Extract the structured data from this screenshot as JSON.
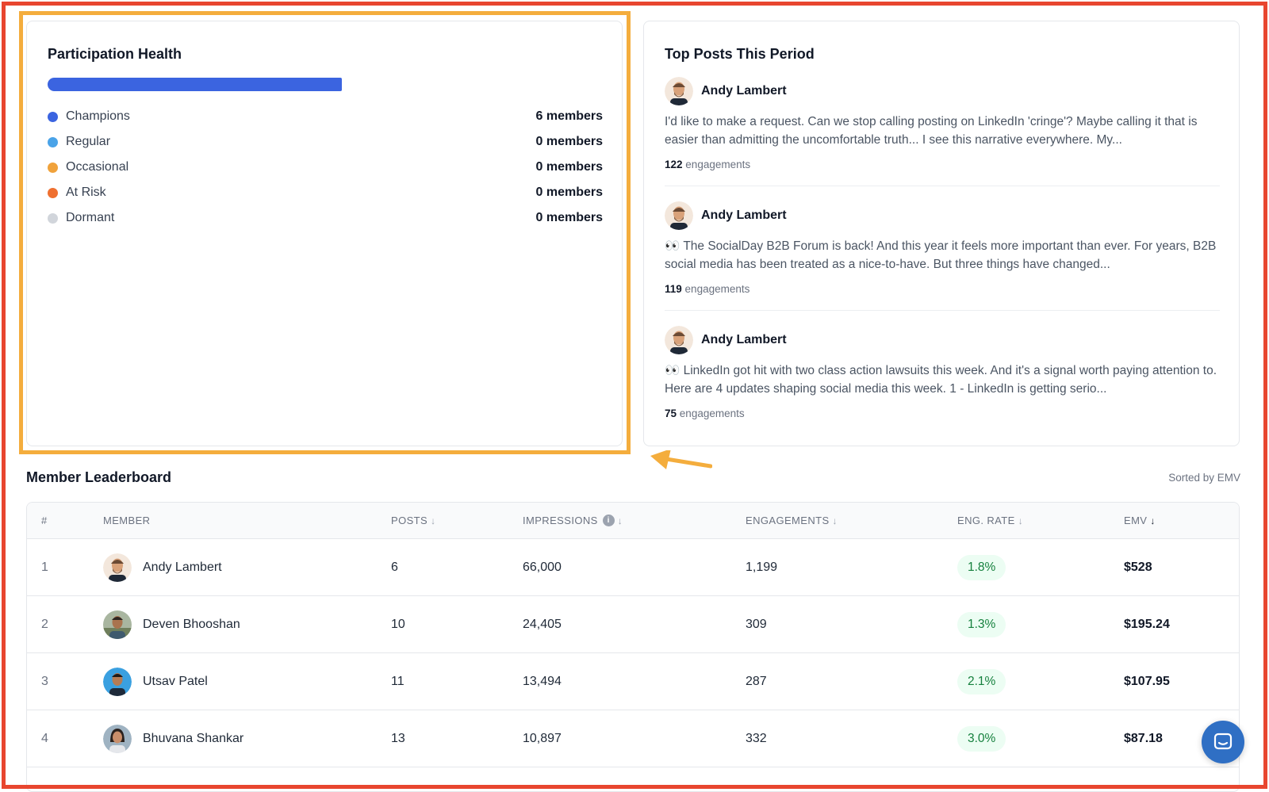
{
  "participation_health": {
    "title": "Participation Health",
    "bar_fill_fraction": 0.53,
    "bar_color": "#3b64e0",
    "segments": [
      {
        "label": "Champions",
        "count": "6 members",
        "color": "#3b64e0"
      },
      {
        "label": "Regular",
        "count": "0 members",
        "color": "#4aa3e8"
      },
      {
        "label": "Occasional",
        "count": "0 members",
        "color": "#f0a23b"
      },
      {
        "label": "At Risk",
        "count": "0 members",
        "color": "#ef7030"
      },
      {
        "label": "Dormant",
        "count": "0 members",
        "color": "#d1d5db"
      }
    ]
  },
  "top_posts": {
    "title": "Top Posts This Period",
    "posts": [
      {
        "author": "Andy Lambert",
        "text": "I'd like to make a request. Can we stop calling posting on LinkedIn 'cringe'? Maybe calling it that is easier than admitting the uncomfortable truth... I see this narrative everywhere. My...",
        "engagement_count": "122",
        "engagement_label": "engagements"
      },
      {
        "author": "Andy Lambert",
        "text": "👀 The SocialDay B2B Forum is back! And this year it feels more important than ever. For years, B2B social media has been treated as a nice-to-have. But three things have changed...",
        "engagement_count": "119",
        "engagement_label": "engagements"
      },
      {
        "author": "Andy Lambert",
        "text": "👀 LinkedIn got hit with two class action lawsuits this week. And it's a signal worth paying attention to. Here are 4 updates shaping social media this week. 1 - LinkedIn is getting serio...",
        "engagement_count": "75",
        "engagement_label": "engagements"
      }
    ]
  },
  "leaderboard": {
    "title": "Member Leaderboard",
    "sorted_label": "Sorted by EMV",
    "columns": {
      "rank": "#",
      "member": "Member",
      "posts": "Posts",
      "impressions": "Impressions",
      "engagements": "Engagements",
      "eng_rate": "Eng. Rate",
      "emv": "EMV"
    },
    "sort_arrow": "↓",
    "info_glyph": "i",
    "rows": [
      {
        "rank": "1",
        "member": "Andy Lambert",
        "posts": "6",
        "impressions": "66,000",
        "engagements": "1,199",
        "eng_rate": "1.8%",
        "emv": "$528"
      },
      {
        "rank": "2",
        "member": "Deven Bhooshan",
        "posts": "10",
        "impressions": "24,405",
        "engagements": "309",
        "eng_rate": "1.3%",
        "emv": "$195.24"
      },
      {
        "rank": "3",
        "member": "Utsav Patel",
        "posts": "11",
        "impressions": "13,494",
        "engagements": "287",
        "eng_rate": "2.1%",
        "emv": "$107.95"
      },
      {
        "rank": "4",
        "member": "Bhuvana Shankar",
        "posts": "13",
        "impressions": "10,897",
        "engagements": "332",
        "eng_rate": "3.0%",
        "emv": "$87.18"
      }
    ]
  },
  "colors": {
    "annotation_red": "#e8462f",
    "annotation_orange": "#f4ad3d",
    "chat_button": "#2f6fc4",
    "rate_pill_bg": "#ecfdf3",
    "rate_pill_text": "#15803d"
  },
  "icons": {
    "chat": "chat-bubble-icon",
    "info": "info-icon",
    "annotation_arrow": "arrow-left-icon"
  }
}
